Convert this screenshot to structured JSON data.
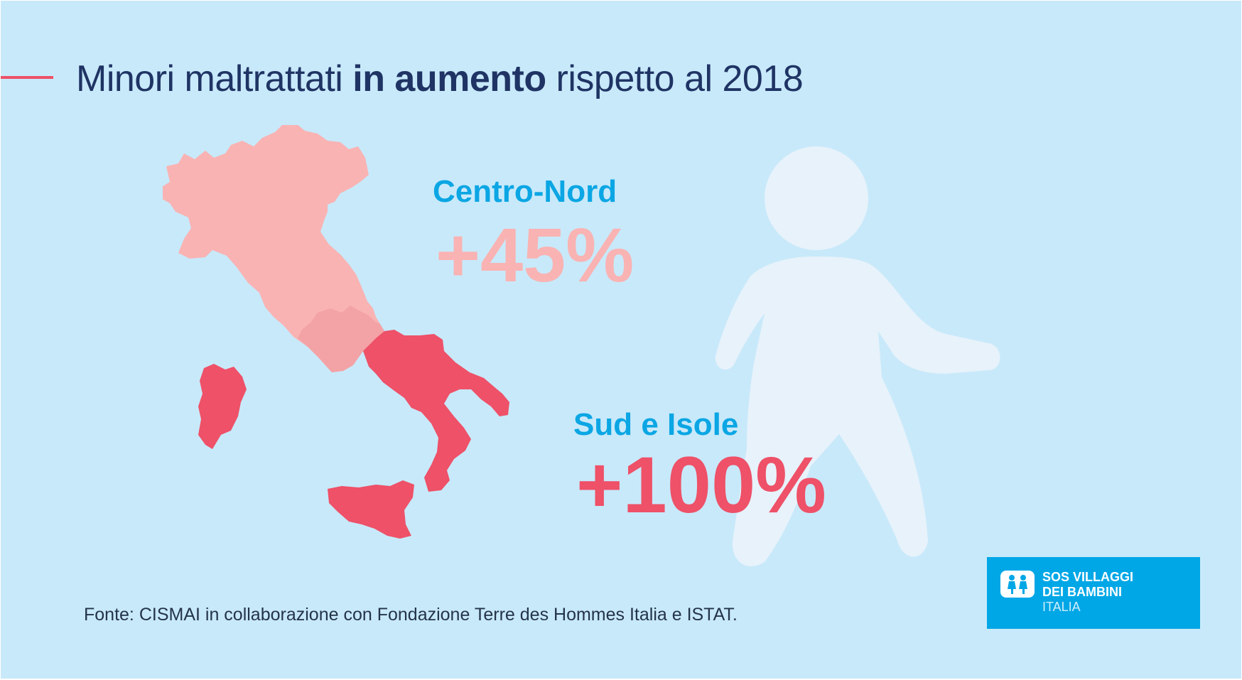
{
  "title": {
    "part1": "Minori maltrattati ",
    "bold": "in aumento",
    "part2": " rispetto al 2018"
  },
  "regions": [
    {
      "name": "Centro-Nord",
      "value": "+45%",
      "color": "#f9b3b3"
    },
    {
      "name": "Sud e Isole",
      "value": "+100%",
      "color": "#ee5168"
    }
  ],
  "source": "Fonte: CISMAI in collaborazione con Fondazione Terre des Hommes Italia e ISTAT.",
  "logo": {
    "line1": "SOS VILLAGGI",
    "line2": "DEI BAMBINI",
    "line3": "ITALIA"
  },
  "colors": {
    "background": "#c8e9fa",
    "title": "#1f3464",
    "label": "#0ba6e4",
    "north": "#f9b3b3",
    "center": "#f3a2a6",
    "south": "#ee5168",
    "figure": "#e7f2fb",
    "logo": "#00a7e6"
  },
  "icons": [
    "italy-map-icon",
    "walking-child-icon",
    "sos-villaggi-logo-icon"
  ]
}
